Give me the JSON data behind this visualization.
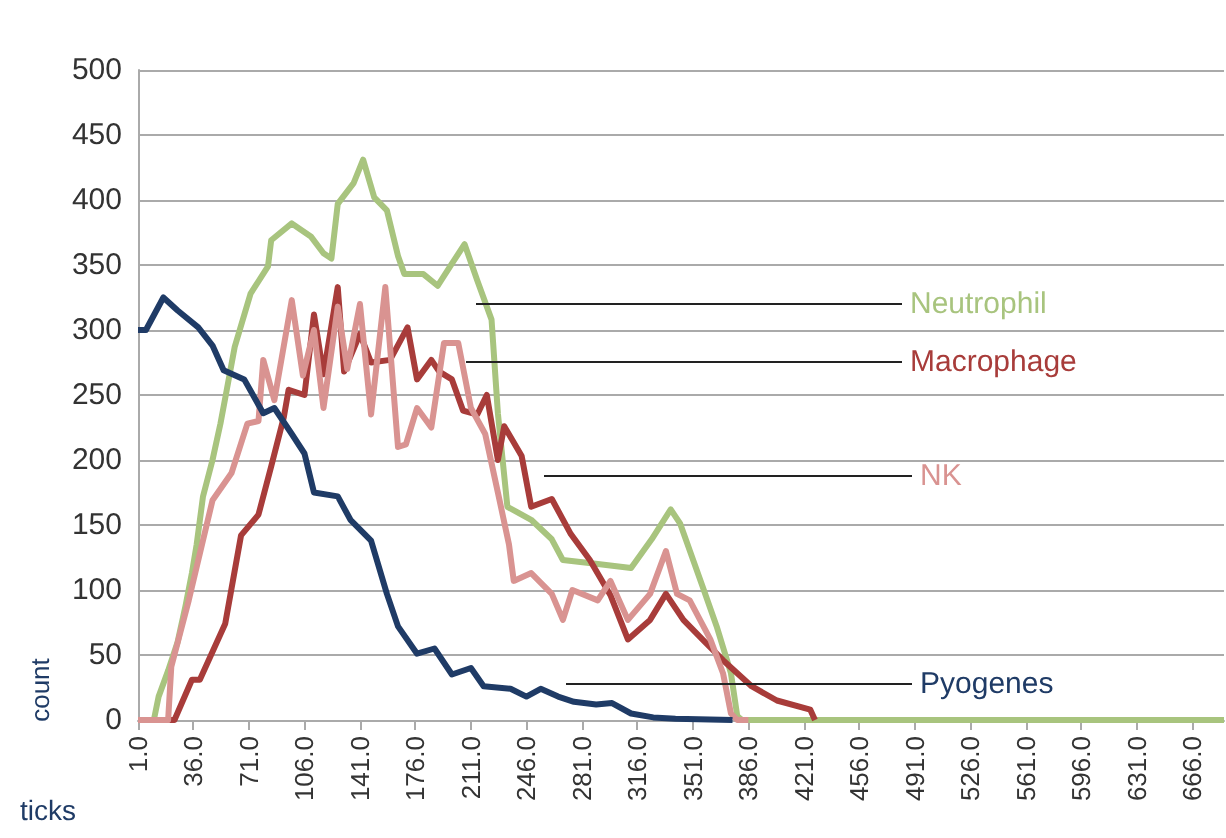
{
  "chart_data": {
    "type": "line",
    "xlabel": "ticks",
    "ylabel": "count",
    "xlim": [
      1,
      686
    ],
    "ylim": [
      0,
      500
    ],
    "xticks": [
      {
        "value": 1,
        "label": "1.0"
      },
      {
        "value": 36,
        "label": "36.0"
      },
      {
        "value": 71,
        "label": "71.0"
      },
      {
        "value": 106,
        "label": "106.0"
      },
      {
        "value": 141,
        "label": "141.0"
      },
      {
        "value": 176,
        "label": "176.0"
      },
      {
        "value": 211,
        "label": "211.0"
      },
      {
        "value": 246,
        "label": "246.0"
      },
      {
        "value": 281,
        "label": "281.0"
      },
      {
        "value": 316,
        "label": "316.0"
      },
      {
        "value": 351,
        "label": "351.0"
      },
      {
        "value": 386,
        "label": "386.0"
      },
      {
        "value": 421,
        "label": "421.0"
      },
      {
        "value": 456,
        "label": "456.0"
      },
      {
        "value": 491,
        "label": "491.0"
      },
      {
        "value": 526,
        "label": "526.0"
      },
      {
        "value": 561,
        "label": "561.0"
      },
      {
        "value": 596,
        "label": "596.0"
      },
      {
        "value": 631,
        "label": "631.0"
      },
      {
        "value": 666,
        "label": "666.0"
      }
    ],
    "yticks": [
      0,
      50,
      100,
      150,
      200,
      250,
      300,
      350,
      400,
      450,
      500
    ],
    "grid": "y",
    "legend": false,
    "series": [
      {
        "name": "Neutrophil",
        "color": "#a8c47e",
        "x": [
          1,
          11,
          14,
          20,
          26,
          31,
          35,
          38,
          42,
          48,
          53,
          57,
          62,
          72,
          83,
          85,
          98,
          110,
          118,
          123,
          127,
          137,
          143,
          150,
          158,
          165,
          169,
          181,
          190,
          199,
          207,
          215,
          224,
          228,
          234,
          249,
          262,
          269,
          291,
          312,
          325,
          337,
          343,
          357,
          366,
          375,
          379,
          382,
          686
        ],
        "values": [
          0,
          0,
          18,
          38,
          60,
          88,
          113,
          135,
          172,
          200,
          228,
          254,
          287,
          328,
          349,
          369,
          382,
          372,
          359,
          355,
          397,
          413,
          431,
          402,
          392,
          357,
          343,
          343,
          334,
          351,
          366,
          338,
          308,
          236,
          164,
          154,
          139,
          123,
          120,
          117,
          139,
          162,
          151,
          103,
          72,
          36,
          3,
          0,
          0
        ]
      },
      {
        "name": "Macrophage",
        "color": "#a83c3a",
        "x": [
          1,
          24,
          35,
          40,
          56,
          66,
          77,
          85,
          93,
          96,
          106,
          112,
          118,
          127,
          131,
          141,
          148,
          160,
          171,
          177,
          186,
          191,
          199,
          206,
          215,
          221,
          228,
          232,
          243,
          249,
          262,
          274,
          286,
          299,
          310,
          324,
          334,
          345,
          357,
          370,
          388,
          404,
          425,
          428
        ],
        "values": [
          0,
          0,
          31,
          31,
          74,
          142,
          158,
          195,
          233,
          254,
          250,
          312,
          266,
          333,
          268,
          297,
          275,
          277,
          302,
          262,
          277,
          268,
          262,
          238,
          235,
          250,
          200,
          226,
          203,
          164,
          170,
          143,
          123,
          96,
          62,
          77,
          97,
          77,
          62,
          46,
          26,
          15,
          8,
          0
        ]
      },
      {
        "name": "NK",
        "color": "#d99391",
        "x": [
          1,
          20,
          22,
          33,
          48,
          60,
          70,
          77,
          80,
          87,
          98,
          105,
          112,
          118,
          127,
          133,
          141,
          148,
          157,
          165,
          170,
          177,
          186,
          194,
          203,
          211,
          220,
          228,
          235,
          238,
          249,
          262,
          269,
          275,
          291,
          299,
          310,
          324,
          334,
          341,
          349,
          362,
          370,
          375,
          379,
          386
        ],
        "values": [
          0,
          0,
          41,
          92,
          169,
          190,
          228,
          230,
          277,
          246,
          323,
          265,
          300,
          240,
          318,
          270,
          320,
          235,
          333,
          210,
          212,
          240,
          225,
          290,
          290,
          240,
          220,
          175,
          135,
          107,
          113,
          97,
          77,
          100,
          92,
          107,
          77,
          97,
          130,
          97,
          92,
          62,
          36,
          5,
          0,
          0
        ]
      },
      {
        "name": "Pyogenes",
        "color": "#1f3b66",
        "x": [
          1,
          6,
          17,
          26,
          39,
          48,
          55,
          68,
          80,
          87,
          98,
          106,
          112,
          127,
          135,
          148,
          158,
          165,
          177,
          188,
          199,
          211,
          219,
          236,
          246,
          255,
          266,
          276,
          290,
          300,
          312,
          326,
          340,
          376
        ],
        "values": [
          300,
          300,
          325,
          315,
          302,
          288,
          269,
          262,
          236,
          240,
          220,
          205,
          175,
          172,
          154,
          138,
          97,
          72,
          51,
          55,
          35,
          40,
          26,
          24,
          18,
          24,
          18,
          14,
          12,
          13,
          5,
          2,
          1,
          0
        ]
      }
    ]
  }
}
